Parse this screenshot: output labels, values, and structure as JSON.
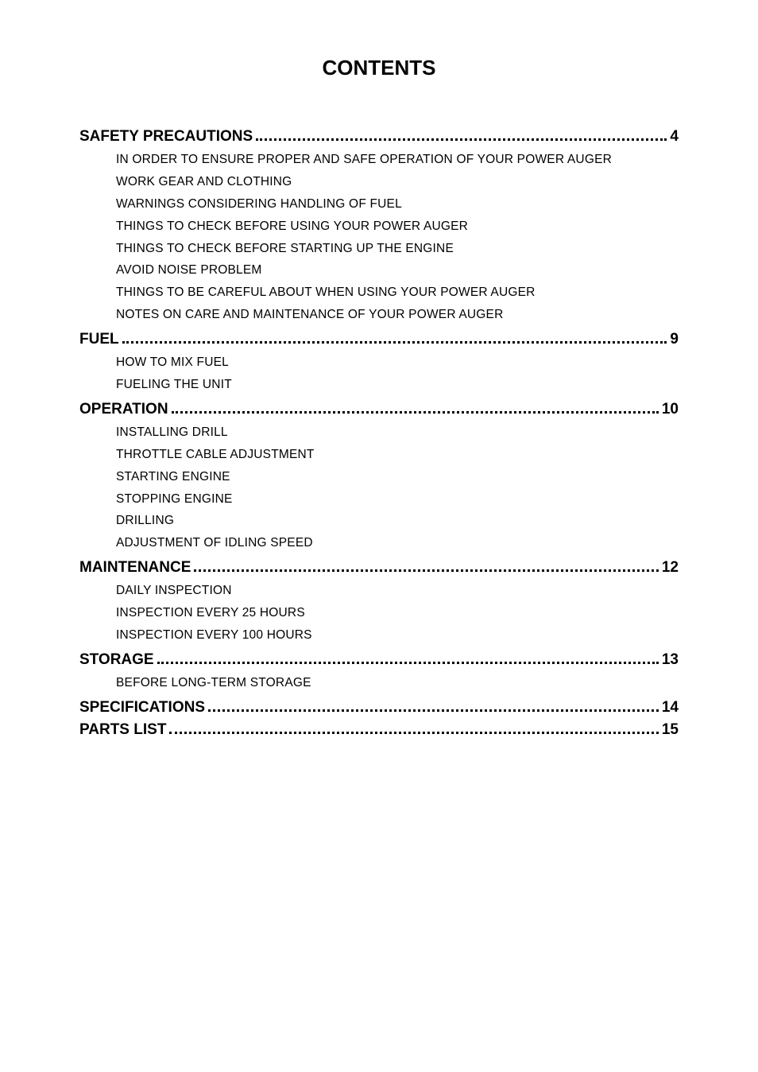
{
  "title": "CONTENTS",
  "sections": [
    {
      "label": "SAFETY PRECAUTIONS",
      "page": "4",
      "subs": [
        "IN ORDER TO ENSURE PROPER AND SAFE OPERATION OF YOUR POWER AUGER",
        "WORK GEAR AND CLOTHING",
        "WARNINGS CONSIDERING HANDLING OF FUEL",
        "THINGS TO CHECK BEFORE USING YOUR POWER AUGER",
        "THINGS TO CHECK BEFORE STARTING UP THE ENGINE",
        "AVOID NOISE PROBLEM",
        "THINGS TO BE CAREFUL ABOUT WHEN USING YOUR POWER AUGER",
        "NOTES ON CARE AND MAINTENANCE OF YOUR POWER AUGER"
      ]
    },
    {
      "label": "FUEL",
      "page": "9",
      "subs": [
        "HOW TO MIX FUEL",
        "FUELING THE UNIT"
      ]
    },
    {
      "label": "OPERATION",
      "page": "10",
      "subs": [
        "INSTALLING DRILL",
        "THROTTLE CABLE ADJUSTMENT",
        "STARTING ENGINE",
        "STOPPING ENGINE",
        "DRILLING",
        "ADJUSTMENT OF IDLING SPEED"
      ]
    },
    {
      "label": "MAINTENANCE",
      "page": "12",
      "subs": [
        "DAILY INSPECTION",
        "INSPECTION EVERY 25 HOURS",
        "INSPECTION EVERY 100 HOURS"
      ]
    },
    {
      "label": "STORAGE",
      "page": "13",
      "subs": [
        "BEFORE LONG-TERM STORAGE"
      ]
    },
    {
      "label": "SPECIFICATIONS",
      "page": "14",
      "subs": []
    },
    {
      "label": "PARTS LIST",
      "page": "15",
      "subs": []
    }
  ]
}
